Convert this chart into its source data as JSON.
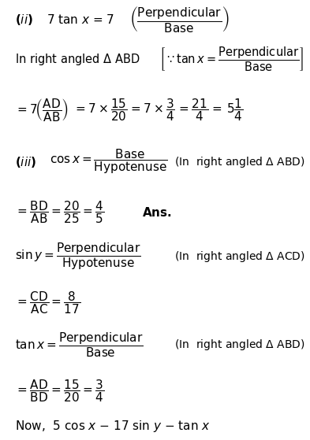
{
  "background_color": "#ffffff",
  "figsize": [
    3.93,
    5.59
  ],
  "dpi": 100,
  "fs": 11
}
